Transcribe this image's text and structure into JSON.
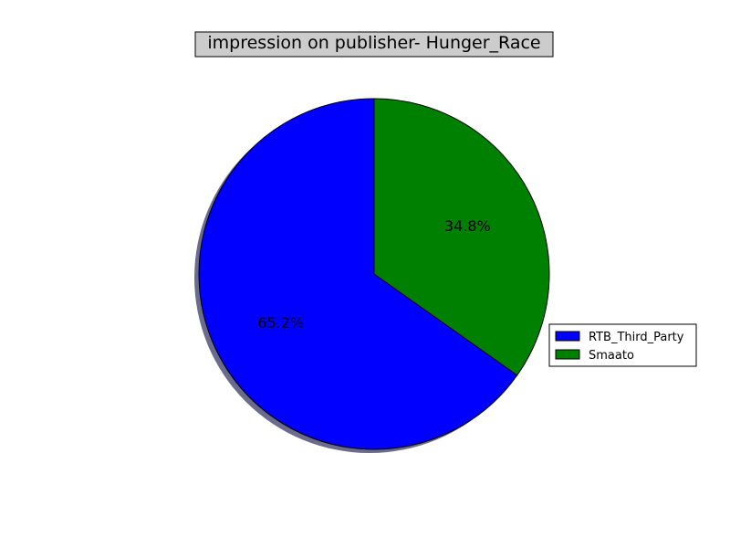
{
  "chart_data": {
    "type": "pie",
    "title": "impression on publisher- Hunger_Race",
    "slices": [
      {
        "label": "RTB_Third_Party",
        "value": 65.2,
        "pct_label": "65.2%",
        "color": "#0000ff"
      },
      {
        "label": "Smaato",
        "value": 34.8,
        "pct_label": "34.8%",
        "color": "#008000"
      }
    ],
    "title_box_color": "#cccccc",
    "shadow_color": "#6b6b8e",
    "legend_position": "center-right",
    "shadow": true
  }
}
